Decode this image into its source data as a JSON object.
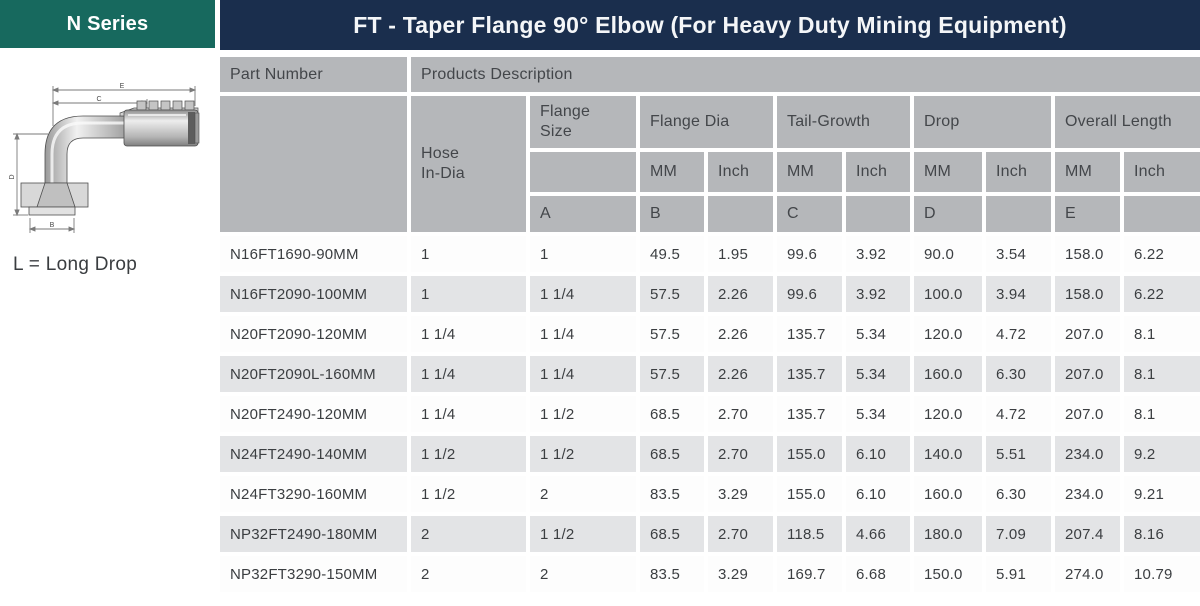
{
  "series_label": "N Series",
  "title": "FT - Taper Flange 90° Elbow (For Heavy Duty Mining Equipment)",
  "colors": {
    "accent_teal": "#17695E",
    "title_navy": "#1A2E4D",
    "header_gray": "#B5B7BA",
    "row_alt_gray": "#E3E4E6"
  },
  "drawing": {
    "caption": "L = Long Drop",
    "dimension_labels": {
      "overall_length": "E",
      "tail_growth": "C",
      "drop": "D",
      "flange_dia": "B"
    }
  },
  "table": {
    "header": {
      "part_number": "Part Number",
      "products_description": "Products Description",
      "hose_in_dia": "Hose\nIn-Dia",
      "flange_size": "Flange\nSize",
      "groups": [
        "Flange Dia",
        "Tail-Growth",
        "Drop",
        "Overall Length"
      ],
      "unit_mm": "MM",
      "unit_inch": "Inch",
      "letters": [
        "A",
        "B",
        "C",
        "D",
        "E"
      ]
    },
    "rows": [
      [
        "N16FT1690-90MM",
        "1",
        "1",
        "49.5",
        "1.95",
        "99.6",
        "3.92",
        "90.0",
        "3.54",
        "158.0",
        "6.22"
      ],
      [
        "N16FT2090-100MM",
        "1",
        "1 1/4",
        "57.5",
        "2.26",
        "99.6",
        "3.92",
        "100.0",
        "3.94",
        "158.0",
        "6.22"
      ],
      [
        "N20FT2090-120MM",
        "1 1/4",
        "1 1/4",
        "57.5",
        "2.26",
        "135.7",
        "5.34",
        "120.0",
        "4.72",
        "207.0",
        "8.1"
      ],
      [
        "N20FT2090L-160MM",
        "1 1/4",
        "1 1/4",
        "57.5",
        "2.26",
        "135.7",
        "5.34",
        "160.0",
        "6.30",
        "207.0",
        "8.1"
      ],
      [
        "N20FT2490-120MM",
        "1 1/4",
        "1 1/2",
        "68.5",
        "2.70",
        "135.7",
        "5.34",
        "120.0",
        "4.72",
        "207.0",
        "8.1"
      ],
      [
        "N24FT2490-140MM",
        "1 1/2",
        "1 1/2",
        "68.5",
        "2.70",
        "155.0",
        "6.10",
        "140.0",
        "5.51",
        "234.0",
        "9.2"
      ],
      [
        "N24FT3290-160MM",
        "1 1/2",
        "2",
        "83.5",
        "3.29",
        "155.0",
        "6.10",
        "160.0",
        "6.30",
        "234.0",
        "9.21"
      ],
      [
        "NP32FT2490-180MM",
        "2",
        "1 1/2",
        "68.5",
        "2.70",
        "118.5",
        "4.66",
        "180.0",
        "7.09",
        "207.4",
        "8.16"
      ],
      [
        "NP32FT3290-150MM",
        "2",
        "2",
        "83.5",
        "3.29",
        "169.7",
        "6.68",
        "150.0",
        "5.91",
        "274.0",
        "10.79"
      ]
    ]
  }
}
